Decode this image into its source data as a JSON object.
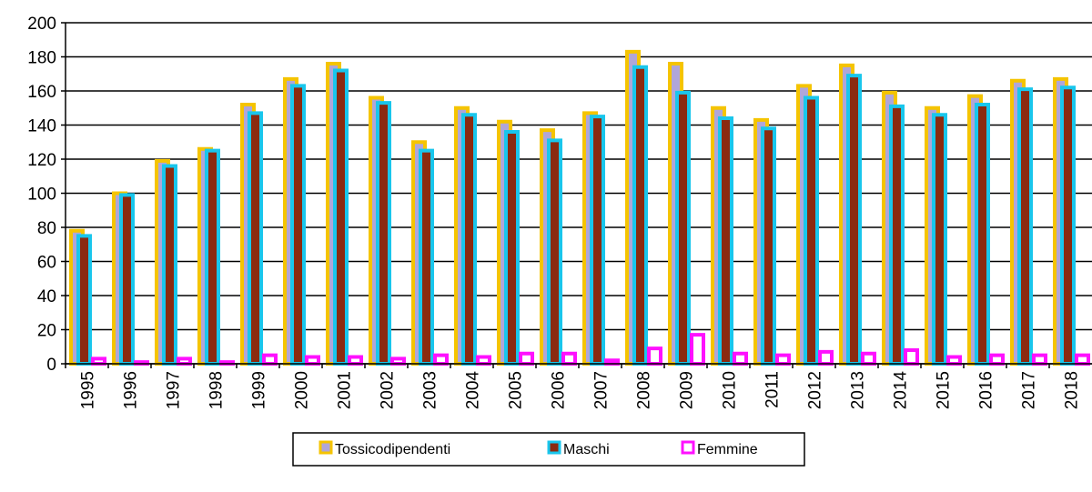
{
  "chart_data": {
    "type": "bar",
    "categories": [
      "1995",
      "1996",
      "1997",
      "1998",
      "1999",
      "2000",
      "2001",
      "2002",
      "2003",
      "2004",
      "2005",
      "2006",
      "2007",
      "2008",
      "2009",
      "2010",
      "2011",
      "2012",
      "2013",
      "2014",
      "2015",
      "2016",
      "2017",
      "2018"
    ],
    "series": [
      {
        "name": "Tossicodipendenti",
        "color": "#f5c400",
        "fill": "#b0a6d8",
        "values": [
          78,
          100,
          119,
          126,
          152,
          167,
          176,
          156,
          130,
          150,
          142,
          137,
          147,
          183,
          176,
          150,
          143,
          163,
          175,
          159,
          150,
          157,
          166,
          167
        ]
      },
      {
        "name": "Maschi",
        "color": "#19c6ec",
        "fill": "#8b2a10",
        "values": [
          75,
          99,
          116,
          125,
          147,
          163,
          172,
          153,
          125,
          146,
          136,
          131,
          145,
          174,
          159,
          144,
          138,
          156,
          169,
          151,
          146,
          152,
          161,
          162
        ]
      },
      {
        "name": "Femmine",
        "color": "#ff10ff",
        "fill": "#ffffff",
        "values": [
          3,
          1,
          3,
          1,
          5,
          4,
          4,
          3,
          5,
          4,
          6,
          6,
          2,
          9,
          17,
          6,
          5,
          7,
          6,
          8,
          4,
          5,
          5,
          5
        ]
      }
    ],
    "ylim": [
      0,
      200
    ],
    "yticks": [
      0,
      20,
      40,
      60,
      80,
      100,
      120,
      140,
      160,
      180,
      200
    ],
    "grid": true
  }
}
